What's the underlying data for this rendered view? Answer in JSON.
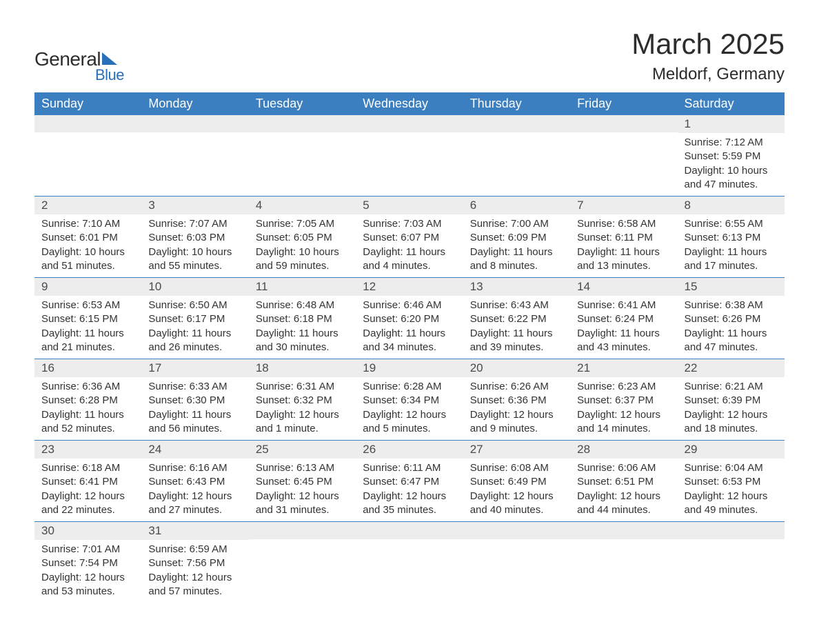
{
  "logo": {
    "text_general": "General",
    "text_blue": "Blue"
  },
  "header": {
    "title": "March 2025",
    "location": "Meldorf, Germany"
  },
  "colors": {
    "header_bg": "#3c7fc0",
    "header_text": "#ffffff",
    "row_border": "#3c7fc0",
    "day_number_bg": "#ededed",
    "body_text": "#333333",
    "logo_accent": "#2970b8"
  },
  "weekdays": [
    "Sunday",
    "Monday",
    "Tuesday",
    "Wednesday",
    "Thursday",
    "Friday",
    "Saturday"
  ],
  "weeks": [
    [
      null,
      null,
      null,
      null,
      null,
      null,
      {
        "d": "1",
        "sr": "Sunrise: 7:12 AM",
        "ss": "Sunset: 5:59 PM",
        "dl1": "Daylight: 10 hours",
        "dl2": "and 47 minutes."
      }
    ],
    [
      {
        "d": "2",
        "sr": "Sunrise: 7:10 AM",
        "ss": "Sunset: 6:01 PM",
        "dl1": "Daylight: 10 hours",
        "dl2": "and 51 minutes."
      },
      {
        "d": "3",
        "sr": "Sunrise: 7:07 AM",
        "ss": "Sunset: 6:03 PM",
        "dl1": "Daylight: 10 hours",
        "dl2": "and 55 minutes."
      },
      {
        "d": "4",
        "sr": "Sunrise: 7:05 AM",
        "ss": "Sunset: 6:05 PM",
        "dl1": "Daylight: 10 hours",
        "dl2": "and 59 minutes."
      },
      {
        "d": "5",
        "sr": "Sunrise: 7:03 AM",
        "ss": "Sunset: 6:07 PM",
        "dl1": "Daylight: 11 hours",
        "dl2": "and 4 minutes."
      },
      {
        "d": "6",
        "sr": "Sunrise: 7:00 AM",
        "ss": "Sunset: 6:09 PM",
        "dl1": "Daylight: 11 hours",
        "dl2": "and 8 minutes."
      },
      {
        "d": "7",
        "sr": "Sunrise: 6:58 AM",
        "ss": "Sunset: 6:11 PM",
        "dl1": "Daylight: 11 hours",
        "dl2": "and 13 minutes."
      },
      {
        "d": "8",
        "sr": "Sunrise: 6:55 AM",
        "ss": "Sunset: 6:13 PM",
        "dl1": "Daylight: 11 hours",
        "dl2": "and 17 minutes."
      }
    ],
    [
      {
        "d": "9",
        "sr": "Sunrise: 6:53 AM",
        "ss": "Sunset: 6:15 PM",
        "dl1": "Daylight: 11 hours",
        "dl2": "and 21 minutes."
      },
      {
        "d": "10",
        "sr": "Sunrise: 6:50 AM",
        "ss": "Sunset: 6:17 PM",
        "dl1": "Daylight: 11 hours",
        "dl2": "and 26 minutes."
      },
      {
        "d": "11",
        "sr": "Sunrise: 6:48 AM",
        "ss": "Sunset: 6:18 PM",
        "dl1": "Daylight: 11 hours",
        "dl2": "and 30 minutes."
      },
      {
        "d": "12",
        "sr": "Sunrise: 6:46 AM",
        "ss": "Sunset: 6:20 PM",
        "dl1": "Daylight: 11 hours",
        "dl2": "and 34 minutes."
      },
      {
        "d": "13",
        "sr": "Sunrise: 6:43 AM",
        "ss": "Sunset: 6:22 PM",
        "dl1": "Daylight: 11 hours",
        "dl2": "and 39 minutes."
      },
      {
        "d": "14",
        "sr": "Sunrise: 6:41 AM",
        "ss": "Sunset: 6:24 PM",
        "dl1": "Daylight: 11 hours",
        "dl2": "and 43 minutes."
      },
      {
        "d": "15",
        "sr": "Sunrise: 6:38 AM",
        "ss": "Sunset: 6:26 PM",
        "dl1": "Daylight: 11 hours",
        "dl2": "and 47 minutes."
      }
    ],
    [
      {
        "d": "16",
        "sr": "Sunrise: 6:36 AM",
        "ss": "Sunset: 6:28 PM",
        "dl1": "Daylight: 11 hours",
        "dl2": "and 52 minutes."
      },
      {
        "d": "17",
        "sr": "Sunrise: 6:33 AM",
        "ss": "Sunset: 6:30 PM",
        "dl1": "Daylight: 11 hours",
        "dl2": "and 56 minutes."
      },
      {
        "d": "18",
        "sr": "Sunrise: 6:31 AM",
        "ss": "Sunset: 6:32 PM",
        "dl1": "Daylight: 12 hours",
        "dl2": "and 1 minute."
      },
      {
        "d": "19",
        "sr": "Sunrise: 6:28 AM",
        "ss": "Sunset: 6:34 PM",
        "dl1": "Daylight: 12 hours",
        "dl2": "and 5 minutes."
      },
      {
        "d": "20",
        "sr": "Sunrise: 6:26 AM",
        "ss": "Sunset: 6:36 PM",
        "dl1": "Daylight: 12 hours",
        "dl2": "and 9 minutes."
      },
      {
        "d": "21",
        "sr": "Sunrise: 6:23 AM",
        "ss": "Sunset: 6:37 PM",
        "dl1": "Daylight: 12 hours",
        "dl2": "and 14 minutes."
      },
      {
        "d": "22",
        "sr": "Sunrise: 6:21 AM",
        "ss": "Sunset: 6:39 PM",
        "dl1": "Daylight: 12 hours",
        "dl2": "and 18 minutes."
      }
    ],
    [
      {
        "d": "23",
        "sr": "Sunrise: 6:18 AM",
        "ss": "Sunset: 6:41 PM",
        "dl1": "Daylight: 12 hours",
        "dl2": "and 22 minutes."
      },
      {
        "d": "24",
        "sr": "Sunrise: 6:16 AM",
        "ss": "Sunset: 6:43 PM",
        "dl1": "Daylight: 12 hours",
        "dl2": "and 27 minutes."
      },
      {
        "d": "25",
        "sr": "Sunrise: 6:13 AM",
        "ss": "Sunset: 6:45 PM",
        "dl1": "Daylight: 12 hours",
        "dl2": "and 31 minutes."
      },
      {
        "d": "26",
        "sr": "Sunrise: 6:11 AM",
        "ss": "Sunset: 6:47 PM",
        "dl1": "Daylight: 12 hours",
        "dl2": "and 35 minutes."
      },
      {
        "d": "27",
        "sr": "Sunrise: 6:08 AM",
        "ss": "Sunset: 6:49 PM",
        "dl1": "Daylight: 12 hours",
        "dl2": "and 40 minutes."
      },
      {
        "d": "28",
        "sr": "Sunrise: 6:06 AM",
        "ss": "Sunset: 6:51 PM",
        "dl1": "Daylight: 12 hours",
        "dl2": "and 44 minutes."
      },
      {
        "d": "29",
        "sr": "Sunrise: 6:04 AM",
        "ss": "Sunset: 6:53 PM",
        "dl1": "Daylight: 12 hours",
        "dl2": "and 49 minutes."
      }
    ],
    [
      {
        "d": "30",
        "sr": "Sunrise: 7:01 AM",
        "ss": "Sunset: 7:54 PM",
        "dl1": "Daylight: 12 hours",
        "dl2": "and 53 minutes."
      },
      {
        "d": "31",
        "sr": "Sunrise: 6:59 AM",
        "ss": "Sunset: 7:56 PM",
        "dl1": "Daylight: 12 hours",
        "dl2": "and 57 minutes."
      },
      null,
      null,
      null,
      null,
      null
    ]
  ]
}
